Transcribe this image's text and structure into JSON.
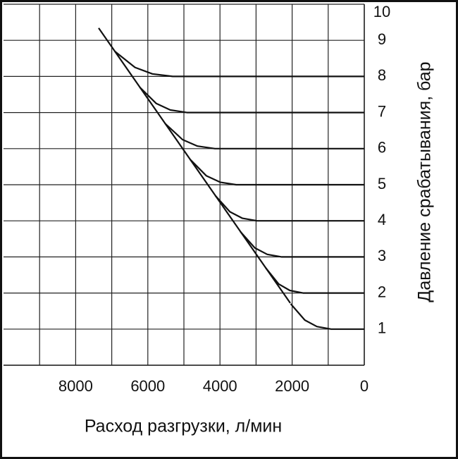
{
  "chart_data": {
    "type": "line",
    "x_label": "Расход разгрузки, л/мин",
    "y_label": "Давление срабатывания, бар",
    "xlim": [
      10000,
      0
    ],
    "ylim": [
      0,
      10
    ],
    "xticks": [
      8000,
      6000,
      4000,
      2000,
      0
    ],
    "x_minor_ticks": [
      9000,
      7000,
      5000,
      3000,
      1000
    ],
    "yticks": [
      1,
      2,
      3,
      4,
      5,
      6,
      7,
      8,
      9,
      10
    ],
    "grid": true,
    "series": [
      {
        "color": "#111111",
        "x": [
          7363,
          2050
        ],
        "values": [
          9.34,
          1.72
        ]
      },
      {
        "color": "#111111",
        "x": [
          0,
          920,
          1312,
          1648,
          2040
        ],
        "values": [
          1,
          1,
          1.07,
          1.25,
          1.7
        ]
      },
      {
        "color": "#111111",
        "x": [
          0,
          1700,
          2062,
          2373,
          2735
        ],
        "values": [
          2,
          2,
          2.07,
          2.25,
          2.7
        ]
      },
      {
        "color": "#111111",
        "x": [
          0,
          2290,
          2690,
          3033,
          3433
        ],
        "values": [
          3,
          3,
          3.07,
          3.25,
          3.7
        ]
      },
      {
        "color": "#111111",
        "x": [
          0,
          2970,
          3376,
          3724,
          4130
        ],
        "values": [
          4,
          4,
          4.07,
          4.25,
          4.7
        ]
      },
      {
        "color": "#111111",
        "x": [
          0,
          3550,
          3997,
          4380,
          4827
        ],
        "values": [
          5,
          5,
          5.07,
          5.25,
          5.7
        ]
      },
      {
        "color": "#111111",
        "x": [
          0,
          4140,
          4625,
          5040,
          5525
        ],
        "values": [
          6,
          6,
          6.07,
          6.25,
          6.7
        ]
      },
      {
        "color": "#111111",
        "x": [
          0,
          4920,
          5376,
          5766,
          6222
        ],
        "values": [
          7,
          7,
          7.07,
          7.25,
          7.7
        ]
      },
      {
        "color": "#111111",
        "x": [
          0,
          5310,
          5873,
          6356,
          6920
        ],
        "values": [
          8,
          8,
          8.07,
          8.25,
          8.7
        ]
      }
    ]
  }
}
